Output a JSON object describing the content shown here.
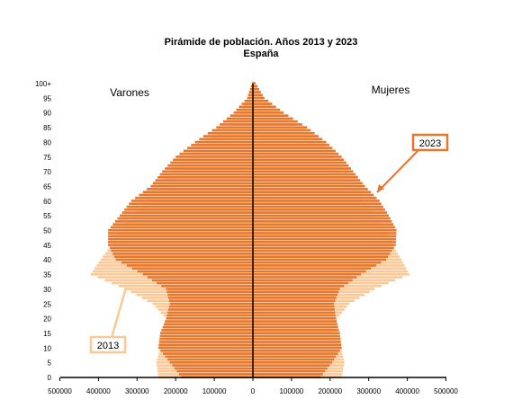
{
  "chart_data": {
    "type": "bar",
    "orientation": "horizontal-pyramid",
    "title": "Pirámide de población. Años 2013 y 2023",
    "subtitle": "España",
    "left_label": "Varones",
    "right_label": "Mujeres",
    "x_ticks": [
      "500000",
      "400000",
      "300000",
      "200000",
      "100000",
      "0",
      "100000",
      "200000",
      "300000",
      "400000",
      "500000"
    ],
    "x_tick_values": [
      -500000,
      -400000,
      -300000,
      -200000,
      -100000,
      0,
      100000,
      200000,
      300000,
      400000,
      500000
    ],
    "xlim": [
      -500000,
      500000
    ],
    "y_ticks": [
      "0",
      "5",
      "10",
      "15",
      "20",
      "25",
      "30",
      "35",
      "40",
      "45",
      "50",
      "55",
      "60",
      "65",
      "70",
      "75",
      "80",
      "85",
      "90",
      "95",
      "100+"
    ],
    "y_tick_values": [
      0,
      5,
      10,
      15,
      20,
      25,
      30,
      35,
      40,
      45,
      50,
      55,
      60,
      65,
      70,
      75,
      80,
      85,
      90,
      95,
      100
    ],
    "ylim": [
      0,
      100
    ],
    "grid": false,
    "annotations": [
      {
        "text": "2023",
        "style": "boxed",
        "color": "#e8762b"
      },
      {
        "text": "2013",
        "style": "boxed",
        "color": "#fbc898"
      }
    ],
    "series": [
      {
        "name": "2013",
        "color": "#fbc898",
        "ages": [
          0,
          5,
          10,
          15,
          20,
          25,
          30,
          35,
          40,
          45,
          50,
          55,
          60,
          65,
          70,
          75,
          80,
          85,
          90,
          95,
          100
        ],
        "men": [
          245000,
          250000,
          240000,
          225000,
          225000,
          260000,
          330000,
          420000,
          395000,
          365000,
          345000,
          310000,
          275000,
          255000,
          215000,
          170000,
          130000,
          70000,
          35000,
          12000,
          2000
        ],
        "women": [
          230000,
          237000,
          228000,
          213000,
          218000,
          250000,
          315000,
          405000,
          385000,
          362000,
          347000,
          318000,
          285000,
          275000,
          240000,
          205000,
          180000,
          120000,
          68000,
          28000,
          5000
        ]
      },
      {
        "name": "2023",
        "color": "#e8762b",
        "ages": [
          0,
          5,
          10,
          15,
          20,
          25,
          30,
          35,
          40,
          45,
          50,
          55,
          60,
          65,
          70,
          75,
          80,
          85,
          90,
          95,
          100
        ],
        "men": [
          185000,
          215000,
          245000,
          240000,
          225000,
          215000,
          225000,
          285000,
          355000,
          375000,
          375000,
          345000,
          315000,
          265000,
          235000,
          200000,
          150000,
          95000,
          50000,
          15000,
          3000
        ],
        "women": [
          175000,
          205000,
          230000,
          225000,
          215000,
          210000,
          225000,
          280000,
          345000,
          370000,
          372000,
          352000,
          328000,
          290000,
          260000,
          230000,
          190000,
          140000,
          80000,
          30000,
          7000
        ]
      }
    ]
  }
}
